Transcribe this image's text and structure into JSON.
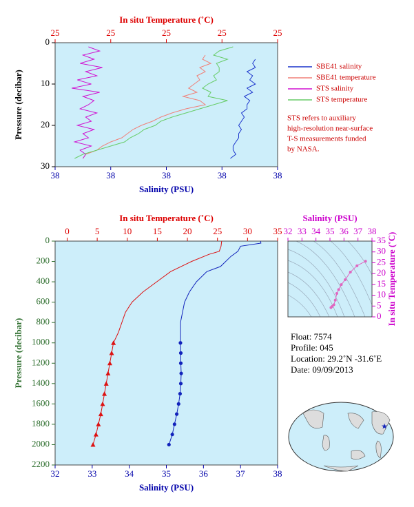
{
  "chart_data": [
    {
      "type": "line",
      "xlabel": "Salinity (PSU)",
      "x2label": "In situ Temperature (˚C)",
      "ylabel": "Pressure (decibar)",
      "xlim": [
        37.6,
        38.4
      ],
      "xticks": [
        {
          "value": 37.6,
          "label": "38"
        },
        {
          "value": 37.8,
          "label": "38"
        },
        {
          "value": 38.0,
          "label": "38"
        },
        {
          "value": 38.2,
          "label": "38"
        },
        {
          "value": 38.4,
          "label": "38"
        }
      ],
      "x2lim": [
        24.6,
        25.4
      ],
      "x2ticks": [
        {
          "value": 24.6,
          "label": "25"
        },
        {
          "value": 24.8,
          "label": "25"
        },
        {
          "value": 25.0,
          "label": "25"
        },
        {
          "value": 25.2,
          "label": "25"
        },
        {
          "value": 25.4,
          "label": "25"
        }
      ],
      "ylim": [
        0,
        30
      ],
      "yticks": [
        0,
        10,
        20,
        30
      ],
      "y_inverted": true,
      "axis_colors": {
        "x": "#0000aa",
        "x2": "#dd0000",
        "y": "#000000"
      },
      "series": [
        {
          "name": "SBE41 salinity",
          "color": "#1a33cc",
          "axis": "x",
          "pressure": [
            4,
            5,
            6,
            7,
            8,
            9,
            10,
            11,
            12,
            13,
            14,
            15,
            16,
            17,
            18,
            19,
            20,
            21,
            22,
            23,
            24,
            25,
            26,
            27,
            28
          ],
          "values": [
            38.32,
            38.31,
            38.32,
            38.29,
            38.31,
            38.3,
            38.32,
            38.29,
            38.31,
            38.28,
            38.3,
            38.29,
            38.29,
            38.27,
            38.28,
            38.27,
            38.26,
            38.27,
            38.26,
            38.26,
            38.25,
            38.24,
            38.24,
            38.25,
            38.23
          ]
        },
        {
          "name": "SBE41 temperature",
          "color": "#f08078",
          "axis": "x2",
          "pressure": [
            3,
            4,
            5,
            6,
            7,
            8,
            9,
            10,
            11,
            12,
            13,
            14,
            15,
            16,
            17,
            18,
            19,
            20,
            21,
            22,
            23,
            24,
            25,
            26,
            27,
            28
          ],
          "values": [
            25.14,
            25.13,
            25.16,
            25.12,
            25.14,
            25.11,
            25.12,
            25.1,
            25.08,
            25.11,
            25.06,
            25.12,
            25.14,
            25.07,
            25.02,
            24.98,
            24.95,
            24.91,
            24.88,
            24.86,
            24.84,
            24.8,
            24.77,
            24.75,
            24.71,
            24.7
          ]
        },
        {
          "name": "STS salinity",
          "color": "#d010d0",
          "axis": "x",
          "pressure": [
            1,
            2,
            3,
            4,
            5,
            6,
            7,
            8,
            9,
            10,
            11,
            12,
            13,
            14,
            15,
            16,
            17,
            18,
            19,
            20,
            21,
            22,
            23,
            24,
            25,
            26,
            27,
            28
          ],
          "values": [
            37.72,
            37.76,
            37.7,
            37.74,
            37.69,
            37.77,
            37.71,
            37.75,
            37.68,
            37.73,
            37.66,
            37.76,
            37.7,
            37.74,
            37.72,
            37.69,
            37.75,
            37.71,
            37.73,
            37.68,
            37.74,
            37.7,
            37.72,
            37.67,
            37.73,
            37.69,
            37.71,
            37.7
          ]
        },
        {
          "name": "STS temperature",
          "color": "#66cc66",
          "axis": "x2",
          "pressure": [
            1,
            2,
            3,
            4,
            5,
            6,
            7,
            8,
            9,
            10,
            11,
            12,
            13,
            14,
            15,
            16,
            17,
            18,
            19,
            20,
            21,
            22,
            23,
            24,
            25,
            26,
            27,
            28
          ],
          "values": [
            25.24,
            25.19,
            25.17,
            25.22,
            25.18,
            25.19,
            25.19,
            25.17,
            25.18,
            25.15,
            25.13,
            25.16,
            25.15,
            25.22,
            25.17,
            25.12,
            25.07,
            25.02,
            24.98,
            24.96,
            24.92,
            24.9,
            24.87,
            24.85,
            24.8,
            24.75,
            24.7,
            24.67
          ]
        }
      ],
      "note": [
        "STS refers to auxiliary",
        "high-resolution near-surface",
        "T-S measurements funded",
        "by NASA."
      ]
    },
    {
      "type": "line",
      "xlabel": "Salinity (PSU)",
      "x2label": "In situ Temperature (˚C)",
      "ylabel": "Pressure (decibar)",
      "xlim": [
        32,
        38
      ],
      "xticks": [
        32,
        33,
        34,
        35,
        36,
        37,
        38
      ],
      "x2lim": [
        -2,
        35
      ],
      "x2ticks": [
        0,
        5,
        10,
        15,
        20,
        25,
        30,
        35
      ],
      "ylim": [
        0,
        2200
      ],
      "yticks": [
        0,
        200,
        400,
        600,
        800,
        1000,
        1200,
        1400,
        1600,
        1800,
        2000,
        2200
      ],
      "y_inverted": true,
      "axis_colors": {
        "x": "#0000aa",
        "x2": "#dd0000",
        "y": "#2f6f2f"
      },
      "series": [
        {
          "color": "#dd1111",
          "axis": "x2",
          "marker": "triangle",
          "pressure": [
            0,
            50,
            100,
            130,
            200,
            300,
            400,
            500,
            600,
            700,
            800,
            900,
            1000
          ],
          "values": [
            25.7,
            25.6,
            25.3,
            23.6,
            20.7,
            17.2,
            14.9,
            12.6,
            10.8,
            9.7,
            9.1,
            8.5,
            7.7
          ],
          "points_pressure": [
            1000,
            1100,
            1200,
            1300,
            1400,
            1500,
            1600,
            1700,
            1800,
            1900,
            2000
          ],
          "points": [
            7.7,
            7.4,
            7.1,
            6.8,
            6.5,
            6.2,
            5.9,
            5.6,
            5.2,
            4.8,
            4.3
          ]
        },
        {
          "color": "#1122bb",
          "axis": "x",
          "marker": "circle",
          "pressure": [
            0,
            20,
            50,
            100,
            150,
            250,
            300,
            400,
            500,
            600,
            800,
            1000
          ],
          "values": [
            37.54,
            37.55,
            37.0,
            36.93,
            36.74,
            36.46,
            36.09,
            35.81,
            35.62,
            35.49,
            35.38,
            35.38
          ],
          "points_pressure": [
            1000,
            1100,
            1200,
            1300,
            1400,
            1500,
            1600,
            1700,
            1800,
            1900,
            2000
          ],
          "points": [
            35.38,
            35.39,
            35.39,
            35.4,
            35.39,
            35.37,
            35.33,
            35.28,
            35.22,
            35.16,
            35.07
          ]
        }
      ]
    },
    {
      "type": "line",
      "x2label": "Salinity (PSU)",
      "y2label": "In situ Temperature (˚C)",
      "x2lim": [
        32,
        38
      ],
      "x2ticks": [
        32,
        33,
        34,
        35,
        36,
        37,
        38
      ],
      "y2lim": [
        0,
        35
      ],
      "y2ticks": [
        0,
        5,
        10,
        15,
        20,
        25,
        30,
        35
      ],
      "axis_colors": {
        "x2": "#cc00cc",
        "y2": "#cc00cc"
      },
      "series": [
        {
          "color": "#e066c0",
          "x": [
            35.07,
            35.16,
            35.28,
            35.38,
            35.49,
            35.62,
            35.81,
            36.09,
            36.46,
            36.93,
            37.54
          ],
          "values": [
            4.3,
            4.8,
            5.6,
            7.7,
            10.8,
            12.6,
            14.9,
            17.2,
            20.7,
            23.6,
            25.7
          ]
        }
      ]
    }
  ],
  "float_info": [
    "Float:  7574",
    "Profile:  045",
    "Location:  29.2˚N  -31.6˚E",
    "Date:  09/09/2013"
  ]
}
